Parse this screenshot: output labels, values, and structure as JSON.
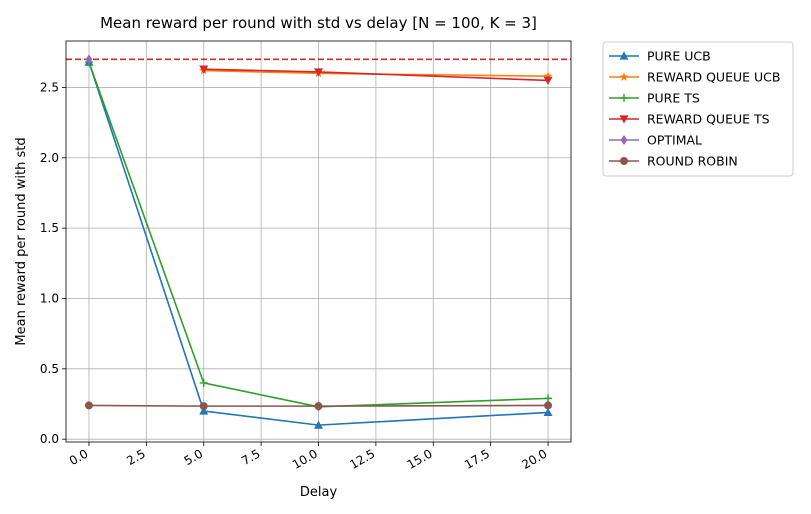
{
  "chart_data": {
    "type": "line",
    "title": "Mean reward per round with std vs delay [N = 100, K = 3]",
    "xlabel": "Delay",
    "ylabel": "Mean reward per round with std",
    "xlim": [
      -1.0,
      21.0
    ],
    "ylim": [
      -0.02,
      2.83
    ],
    "xticks": [
      "0.0",
      "2.5",
      "5.0",
      "7.5",
      "10.0",
      "12.5",
      "15.0",
      "17.5",
      "20.0"
    ],
    "yticks": [
      "0.0",
      "0.5",
      "1.0",
      "1.5",
      "2.0",
      "2.5"
    ],
    "grid": true,
    "legend_position": "outside-top-right",
    "reference_line": {
      "y": 2.7,
      "color": "#d62728",
      "style": "dashed"
    },
    "series": [
      {
        "name": "PURE UCB",
        "color": "#1f77b4",
        "marker": "triangle-up",
        "x": [
          0,
          5,
          10,
          20
        ],
        "values": [
          2.68,
          0.2,
          0.1,
          0.19
        ]
      },
      {
        "name": "REWARD QUEUE UCB",
        "color": "#ff7f0e",
        "marker": "star",
        "x": [
          5,
          10,
          20
        ],
        "values": [
          2.62,
          2.6,
          2.58
        ]
      },
      {
        "name": "PURE TS",
        "color": "#2ca02c",
        "marker": "plus",
        "x": [
          0,
          5,
          10,
          20
        ],
        "values": [
          2.68,
          0.4,
          0.23,
          0.29
        ]
      },
      {
        "name": "REWARD QUEUE TS",
        "color": "#d62728",
        "marker": "triangle-down",
        "x": [
          5,
          10,
          20
        ],
        "values": [
          2.63,
          2.61,
          2.55
        ]
      },
      {
        "name": "OPTIMAL",
        "color": "#9467bd",
        "marker": "diamond",
        "x": [
          0
        ],
        "values": [
          2.7
        ]
      },
      {
        "name": "ROUND ROBIN",
        "color": "#8c564b",
        "marker": "circle",
        "x": [
          0,
          5,
          10,
          20
        ],
        "values": [
          0.24,
          0.235,
          0.235,
          0.24
        ]
      }
    ]
  }
}
